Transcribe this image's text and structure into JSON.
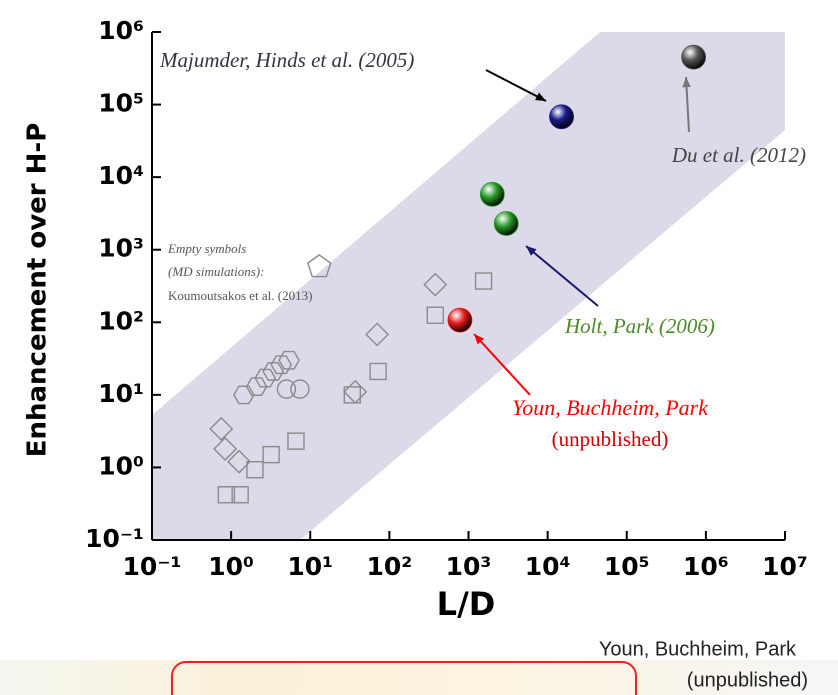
{
  "chart_data": {
    "type": "scatter",
    "x_label": "L/D",
    "y_label": "Enhancement over H-P",
    "x_scale": "log",
    "y_scale": "log",
    "xlim": [
      0.1,
      10000000
    ],
    "ylim": [
      0.1,
      1000000
    ],
    "xticks": [
      {
        "value": 0.1,
        "label": "10⁻¹"
      },
      {
        "value": 1,
        "label": "10⁰"
      },
      {
        "value": 10,
        "label": "10¹"
      },
      {
        "value": 100,
        "label": "10²"
      },
      {
        "value": 1000,
        "label": "10³"
      },
      {
        "value": 10000,
        "label": "10⁴"
      },
      {
        "value": 100000,
        "label": "10⁵"
      },
      {
        "value": 1000000,
        "label": "10⁶"
      },
      {
        "value": 10000000,
        "label": "10⁷"
      }
    ],
    "yticks": [
      {
        "value": 0.1,
        "label": "10⁻¹"
      },
      {
        "value": 1,
        "label": "10⁰"
      },
      {
        "value": 10,
        "label": "10¹"
      },
      {
        "value": 100,
        "label": "10²"
      },
      {
        "value": 1000,
        "label": "10³"
      },
      {
        "value": 10000,
        "label": "10⁴"
      },
      {
        "value": 100000,
        "label": "10⁵"
      },
      {
        "value": 1000000,
        "label": "10⁶"
      }
    ],
    "series": [
      {
        "marker": "hexagon",
        "color": "#8a8a8a",
        "x": [
          1.45,
          2.1,
          2.7,
          3.4,
          4.3,
          5.4
        ],
        "values": [
          10,
          13,
          17,
          21,
          26,
          30
        ]
      },
      {
        "marker": "circle",
        "color": "#8a8a8a",
        "x": [
          5,
          7.4
        ],
        "values": [
          12,
          12
        ]
      },
      {
        "marker": "diamond",
        "color": "#8a8a8a",
        "x": [
          0.75,
          0.84,
          1.26,
          37,
          70,
          380
        ],
        "values": [
          3.4,
          1.8,
          1.2,
          11,
          68,
          330
        ]
      },
      {
        "marker": "square",
        "color": "#8a8a8a",
        "x": [
          0.87,
          1.3,
          2.0,
          3.2,
          6.6,
          34,
          72,
          380,
          1550
        ],
        "values": [
          0.42,
          0.42,
          0.93,
          1.5,
          2.3,
          10,
          21,
          125,
          370
        ]
      },
      {
        "marker": "pentagon",
        "color": "#8a8a8a",
        "x": [
          13
        ],
        "values": [
          580
        ]
      },
      {
        "marker": "sphere",
        "color": "#1a1a8c",
        "x": [
          15000
        ],
        "values": [
          68000
        ]
      },
      {
        "marker": "sphere",
        "color": "#555555",
        "x": [
          700000
        ],
        "values": [
          450000
        ]
      },
      {
        "marker": "sphere",
        "color": "#2a9a2a",
        "x": [
          2000,
          3000
        ],
        "values": [
          5800,
          2300
        ]
      },
      {
        "marker": "sphere",
        "color": "#e51c1c",
        "x": [
          780
        ],
        "values": [
          107
        ]
      }
    ],
    "annotations": [
      {
        "text": "Majumder, Hinds et al. (2005)",
        "color": "#333344"
      },
      {
        "text": "Du et al. (2012)",
        "color": "#444444"
      },
      {
        "text": "Holt, Park (2006)",
        "color": "#4a8a2a"
      },
      {
        "text": "Youn, Buchheim, Park",
        "color": "#ff0000"
      },
      {
        "text": "(unpublished)",
        "color": "#cc0000"
      },
      {
        "text": "Empty symbols",
        "color": "#555555"
      },
      {
        "text": "(MD simulations):",
        "color": "#555555"
      },
      {
        "text": "Koumoutsakos et al. (2013)",
        "color": "#555555"
      },
      {
        "text": "Youn, Buchheim, Park",
        "color": "#222222"
      },
      {
        "text": "(unpublished)",
        "color": "#222222"
      }
    ]
  }
}
